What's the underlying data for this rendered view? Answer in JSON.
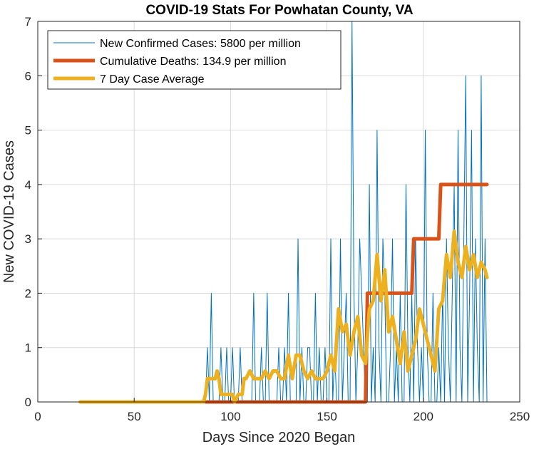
{
  "chart_data": {
    "type": "line",
    "title": "COVID-19 Stats For Powhatan County, VA",
    "xlabel": "Days Since 2020 Began",
    "ylabel": "New COVID-19 Cases",
    "xlim": [
      0,
      250
    ],
    "ylim": [
      0,
      7
    ],
    "xticks": [
      "0",
      "50",
      "100",
      "150",
      "200",
      "250"
    ],
    "yticks": [
      "0",
      "1",
      "2",
      "3",
      "4",
      "5",
      "6",
      "7"
    ],
    "grid": true,
    "legend_position": "top-left",
    "series": [
      {
        "name": "New Confirmed Cases: 5800 per million",
        "color": "#0072BD",
        "style": "thin-line",
        "x": [
          22,
          23,
          24,
          25,
          26,
          27,
          28,
          29,
          30,
          31,
          32,
          33,
          34,
          35,
          36,
          37,
          38,
          39,
          40,
          41,
          42,
          43,
          44,
          45,
          46,
          47,
          48,
          49,
          50,
          51,
          52,
          53,
          54,
          55,
          56,
          57,
          58,
          59,
          60,
          61,
          62,
          63,
          64,
          65,
          66,
          67,
          68,
          69,
          70,
          71,
          72,
          73,
          74,
          75,
          76,
          77,
          78,
          79,
          80,
          81,
          82,
          83,
          84,
          85,
          86,
          87,
          88,
          89,
          90,
          91,
          92,
          93,
          94,
          95,
          96,
          97,
          98,
          99,
          100,
          101,
          102,
          103,
          104,
          105,
          106,
          107,
          108,
          109,
          110,
          111,
          112,
          113,
          114,
          115,
          116,
          117,
          118,
          119,
          120,
          121,
          122,
          123,
          124,
          125,
          126,
          127,
          128,
          129,
          130,
          131,
          132,
          133,
          134,
          135,
          136,
          137,
          138,
          139,
          140,
          141,
          142,
          143,
          144,
          145,
          146,
          147,
          148,
          149,
          150,
          151,
          152,
          153,
          154,
          155,
          156,
          157,
          158,
          159,
          160,
          161,
          162,
          163,
          164,
          165,
          166,
          167,
          168,
          169,
          170,
          171,
          172,
          173,
          174,
          175,
          176,
          177,
          178,
          179,
          180,
          181,
          182,
          183,
          184,
          185,
          186,
          187,
          188,
          189,
          190,
          191,
          192,
          193,
          194,
          195,
          196,
          197,
          198,
          199,
          200,
          201,
          202,
          203,
          204,
          205,
          206,
          207,
          208,
          209,
          210,
          211,
          212,
          213,
          214,
          215,
          216,
          217,
          218,
          219,
          220,
          221,
          222,
          223,
          224,
          225,
          226,
          227,
          228,
          229,
          230,
          231,
          232,
          233
        ],
        "y": [
          0,
          0,
          0,
          0,
          0,
          0,
          0,
          0,
          0,
          0,
          0,
          0,
          0,
          0,
          0,
          0,
          0,
          0,
          0,
          0,
          0,
          0,
          0,
          0,
          0,
          0,
          0,
          0,
          0,
          0,
          0,
          0,
          0,
          0,
          0,
          0,
          0,
          0,
          0,
          0,
          0,
          0,
          0,
          0,
          0,
          0,
          0,
          0,
          0,
          0,
          0,
          0,
          0,
          0,
          0,
          0,
          0,
          0,
          0,
          0,
          0,
          0,
          0,
          0,
          0,
          0,
          1,
          0,
          2,
          0,
          0,
          0,
          0,
          1,
          0,
          0,
          1,
          0,
          0,
          1,
          0,
          0,
          0,
          1,
          0,
          0,
          0,
          0,
          0,
          0,
          2,
          0,
          0,
          0,
          1,
          0,
          0,
          2,
          0,
          0,
          0,
          0,
          0,
          1,
          0,
          0,
          1,
          0,
          2,
          0,
          0,
          0,
          0,
          3,
          0,
          1,
          0,
          0,
          1,
          1,
          0,
          0,
          2,
          0,
          1,
          0,
          0,
          1,
          0,
          0,
          3,
          0,
          1,
          0,
          0,
          3,
          0,
          1,
          2,
          0,
          0,
          7,
          2,
          0,
          1,
          3,
          2,
          1,
          0,
          0,
          4,
          0,
          1,
          0,
          5,
          1,
          0,
          3,
          2,
          0,
          0,
          1,
          3,
          0,
          1,
          0,
          2,
          0,
          0,
          4,
          1,
          0,
          2,
          0,
          3,
          1,
          0,
          1,
          0,
          5,
          1,
          0,
          0,
          2,
          0,
          0,
          1,
          0,
          2,
          0,
          3,
          1,
          0,
          2,
          4,
          0,
          5,
          1,
          0,
          3,
          6,
          0,
          2,
          5,
          0,
          3,
          1,
          0,
          6,
          0,
          3,
          0
        ],
        "values_source": "estimated from plot"
      },
      {
        "name": "Cumulative Deaths: 134.9 per million",
        "color": "#D95319",
        "style": "thick-line",
        "x": [
          87,
          170,
          171,
          194,
          195,
          208,
          209,
          233
        ],
        "y": [
          0,
          0,
          2,
          2,
          3,
          3,
          4,
          4
        ]
      },
      {
        "name": "7 Day Case Average",
        "color": "#EDB120",
        "style": "thick-line",
        "x": [
          22,
          86,
          87,
          88,
          90,
          92,
          93,
          94,
          95,
          96,
          98,
          100,
          101,
          102,
          104,
          106,
          107,
          108,
          110,
          112,
          114,
          116,
          118,
          120,
          122,
          124,
          126,
          128,
          130,
          132,
          134,
          136,
          138,
          140,
          142,
          144,
          146,
          148,
          150,
          152,
          154,
          156,
          158,
          160,
          162,
          164,
          166,
          168,
          170,
          172,
          174,
          176,
          178,
          180,
          182,
          184,
          186,
          188,
          190,
          192,
          194,
          196,
          198,
          200,
          202,
          204,
          206,
          208,
          210,
          212,
          214,
          216,
          218,
          220,
          222,
          224,
          226,
          228,
          230,
          232,
          233
        ],
        "y": [
          0,
          0,
          0.14,
          0.43,
          0.43,
          0.43,
          0.57,
          0.43,
          0.14,
          0.14,
          0.14,
          0.14,
          0.14,
          0,
          0.14,
          0.14,
          0.43,
          0.43,
          0.57,
          0.43,
          0.43,
          0.43,
          0.57,
          0.43,
          0.57,
          0.57,
          0.43,
          0.43,
          0.86,
          0.43,
          0.86,
          0.86,
          0.57,
          0.43,
          0.57,
          0.43,
          0.43,
          0.43,
          0.57,
          0.86,
          0.57,
          1.71,
          1.29,
          1.43,
          0.86,
          1.29,
          1.57,
          0.86,
          0.71,
          1.71,
          1.86,
          2.71,
          1.86,
          2.43,
          1.29,
          1.57,
          1.14,
          0.71,
          1.29,
          0.57,
          0.86,
          1.14,
          1.71,
          1.43,
          1.14,
          0.86,
          0.57,
          1.71,
          1.86,
          2.71,
          2.29,
          3.14,
          2.57,
          2.29,
          2.86,
          2.43,
          2.71,
          2.29,
          2.57,
          2.43,
          2.29
        ],
        "values_source": "estimated from plot"
      }
    ]
  }
}
